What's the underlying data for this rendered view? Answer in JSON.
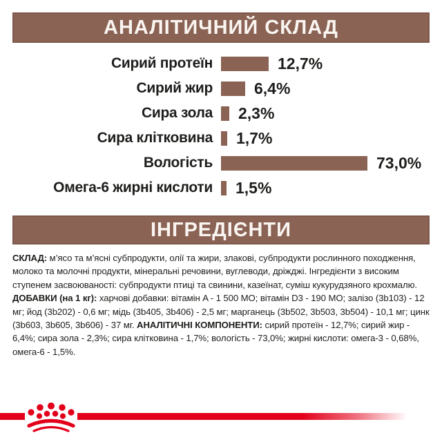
{
  "colors": {
    "section_brown": "#8a6355",
    "section_brown_border": "#7c584b",
    "header_text": "#faf5f1",
    "body_text": "#1d1d1b",
    "brand_red": "#e2001a"
  },
  "analytical": {
    "title": "АНАЛІТИЧНИЙ СКЛАД"
  },
  "chart_data": {
    "type": "bar",
    "orientation": "horizontal",
    "title": "АНАЛІТИЧНИЙ СКЛАД",
    "categories": [
      "Сирий протеїн",
      "Сирий жир",
      "Сира зола",
      "Сира клітковина",
      "Вологість",
      "Омега-6 жирні кислоти"
    ],
    "values": [
      12.7,
      6.4,
      2.3,
      1.7,
      73.0,
      1.5
    ],
    "value_labels": [
      "12,7%",
      "6,4%",
      "2,3%",
      "1,7%",
      "73,0%",
      "1,5%"
    ],
    "unit": "%",
    "bar_color": "#8a6355",
    "axis": "none",
    "grid": false,
    "legend": false,
    "note": "bar lengths proportional (~5.4px per %) except Вологість which is capped at 212px"
  },
  "ingredients": {
    "title": "ІНГРЕДІЄНТИ",
    "p1": {
      "label": "СКЛАД:",
      "text": "м’ясо та м’ясні субпродукти, олії та жири, злакові, субпродукти рослинного походження, молоко та молочні продукти, мінеральні речовини, вуглеводи, дріжджі. Інгредієнти з високим ступенем засвоюваності: субпродукти птиці та свинини, казеїнат, суміш кукурудзяного крохмалю."
    },
    "p2": {
      "label": "ДОБАВКИ (на 1 кг):",
      "text1": "харчові добавки: вітамін A - 1 500 МО; вітамін D3 - 190 МО; залізо (3b103) - 12 мг; йод (3b202) - 0,6 мг; мідь (3b405, 3b406) - 2,5 мг; марганець (3b502, 3b503, 3b504) - 10,1 мг; цинк (3b603, 3b605, 3b606) - 37 мг.",
      "label2": "АНАЛІТИЧНІ КОМПОНЕНТИ:",
      "text2": "сирий протеїн - 12,7%; сирий жир - 6,4%; сира зола - 2,3%; сира клітковина - 1,7%; вологість - 73,0%; жирні кислоти: омега-3 - 0,68%, омега-6 - 1,5%."
    }
  },
  "footer": {
    "logo": "royal-canin-crown"
  }
}
